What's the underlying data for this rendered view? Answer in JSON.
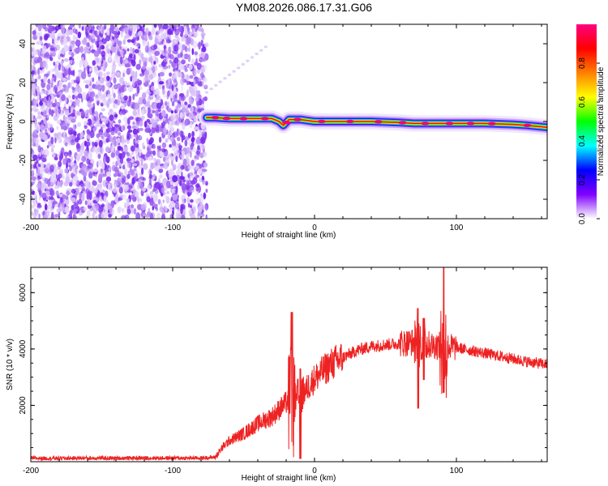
{
  "title": "YM08.2026.086.17.31.G06",
  "chart_data": [
    {
      "type": "heatmap",
      "title": "YM08.2026.086.17.31.G06",
      "xlabel": "Height of straight line (km)",
      "ylabel": "Frequency (Hz)",
      "xlim": [
        -200,
        164
      ],
      "ylim": [
        -50,
        50
      ],
      "x_ticks": [
        -200,
        -100,
        0,
        100
      ],
      "x_tick_labels": [
        "-200",
        "-100",
        "0",
        "100"
      ],
      "y_ticks": [
        -40,
        -20,
        0,
        20,
        40
      ],
      "y_tick_labels": [
        "-40",
        "-20",
        "0",
        "20",
        "40"
      ],
      "noise_region_x": [
        -200,
        -76
      ],
      "ridge": {
        "x": [
          -76,
          -70,
          -60,
          -50,
          -40,
          -30,
          -25,
          -22,
          -18,
          -10,
          0,
          20,
          40,
          60,
          70,
          80,
          90,
          100,
          120,
          140,
          150,
          164
        ],
        "freq": [
          2,
          2,
          1.5,
          1.5,
          1.5,
          1.5,
          0,
          -2,
          1,
          1,
          0,
          0,
          0,
          -0.5,
          -1,
          -1,
          -1,
          -1,
          -1,
          -1.5,
          -2,
          -3
        ]
      },
      "colorbar": {
        "label": "Normalized spectral amplitude",
        "range": [
          0,
          1
        ],
        "ticks": [
          0,
          0.2,
          0.4,
          0.6,
          0.8
        ],
        "tick_labels": [
          "0.0",
          "0.2",
          "0.4",
          "0.6",
          "0.8"
        ],
        "colors": [
          "#ffffff",
          "#8000ff",
          "#0000ff",
          "#00ffff",
          "#00ff00",
          "#ffff00",
          "#ff8000",
          "#ff0000",
          "#ff0080"
        ]
      }
    },
    {
      "type": "line",
      "xlabel": "Height of straight line (km)",
      "ylabel": "SNR (10 * v/v)",
      "xlim": [
        -200,
        164
      ],
      "ylim": [
        0,
        6900
      ],
      "x_ticks": [
        -200,
        -100,
        0,
        100
      ],
      "x_tick_labels": [
        "-200",
        "-100",
        "0",
        "100"
      ],
      "y_ticks": [
        2000,
        4000,
        6000
      ],
      "y_tick_labels": [
        "2000",
        "4000",
        "6000"
      ],
      "line_color": "#ee2222",
      "series": [
        {
          "name": "SNR",
          "x": [
            -200,
            -180,
            -160,
            -140,
            -120,
            -100,
            -90,
            -80,
            -70,
            -65,
            -60,
            -50,
            -40,
            -30,
            -20,
            -10,
            0,
            10,
            20,
            30,
            40,
            50,
            60,
            70,
            80,
            90,
            100,
            110,
            120,
            130,
            140,
            150,
            164
          ],
          "values": [
            120,
            120,
            130,
            125,
            130,
            130,
            125,
            130,
            160,
            500,
            750,
            1000,
            1350,
            1600,
            2100,
            2300,
            2950,
            3400,
            3700,
            3950,
            4100,
            4150,
            4200,
            4250,
            4150,
            4100,
            4050,
            3950,
            3850,
            3750,
            3650,
            3550,
            3450
          ],
          "spikes": [
            {
              "x": -16,
              "value": 5300,
              "low": 700
            },
            {
              "x": -10,
              "value": 3300,
              "low": 100
            },
            {
              "x": 73,
              "value": 5450,
              "low": 1900
            },
            {
              "x": 77,
              "value": 5100,
              "low": 2900
            },
            {
              "x": 91,
              "value": 6900,
              "low": 2450
            }
          ]
        }
      ]
    }
  ]
}
